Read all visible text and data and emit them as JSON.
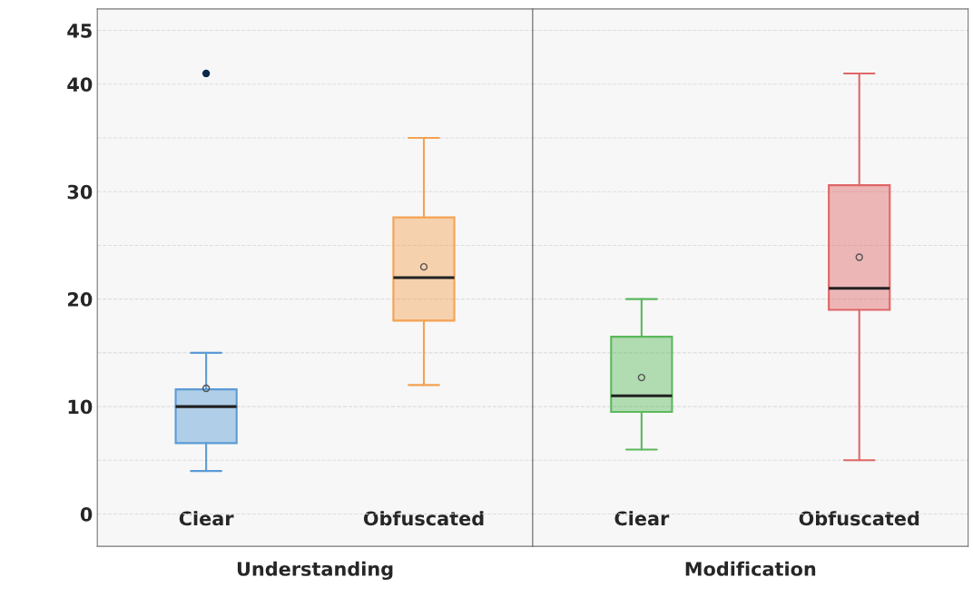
{
  "chart_data": [
    {
      "type": "box",
      "xlabel": "Understanding",
      "categories": [
        "Clear",
        "Obfuscated"
      ],
      "colors": [
        "#5b9bd5",
        "#f4a251"
      ],
      "boxes": [
        {
          "low": 4,
          "q1": 6.6,
          "median": 10,
          "q3": 11.6,
          "high": 15,
          "mean": 11.7,
          "outliers": [
            41
          ]
        },
        {
          "low": 12,
          "q1": 18,
          "median": 22,
          "q3": 27.6,
          "high": 35,
          "mean": 23
        }
      ],
      "ylim": [
        -3,
        47
      ],
      "yticks": [
        0,
        {
          "value": 5,
          "label": null
        },
        10,
        {
          "value": 15,
          "label": null
        },
        20,
        {
          "value": 25,
          "label": null
        },
        30,
        {
          "value": 35,
          "label": null
        },
        40,
        45
      ],
      "grid": "y"
    },
    {
      "type": "box",
      "xlabel": "Modification",
      "categories": [
        "Clear",
        "Obfuscated"
      ],
      "colors": [
        "#5cb85c",
        "#e06666"
      ],
      "boxes": [
        {
          "low": 6,
          "q1": 9.5,
          "median": 11,
          "q3": 16.5,
          "high": 20,
          "mean": 12.7
        },
        {
          "low": 5,
          "q1": 19,
          "median": 21,
          "q3": 30.6,
          "high": 41,
          "mean": 23.9
        }
      ],
      "ylim": [
        -3,
        47
      ],
      "yticks": [
        0,
        {
          "value": 5,
          "label": null
        },
        10,
        {
          "value": 15,
          "label": null
        },
        20,
        {
          "value": 25,
          "label": null
        },
        30,
        {
          "value": 35,
          "label": null
        },
        40,
        45
      ],
      "grid": "y",
      "tick_labels": "x"
    }
  ]
}
